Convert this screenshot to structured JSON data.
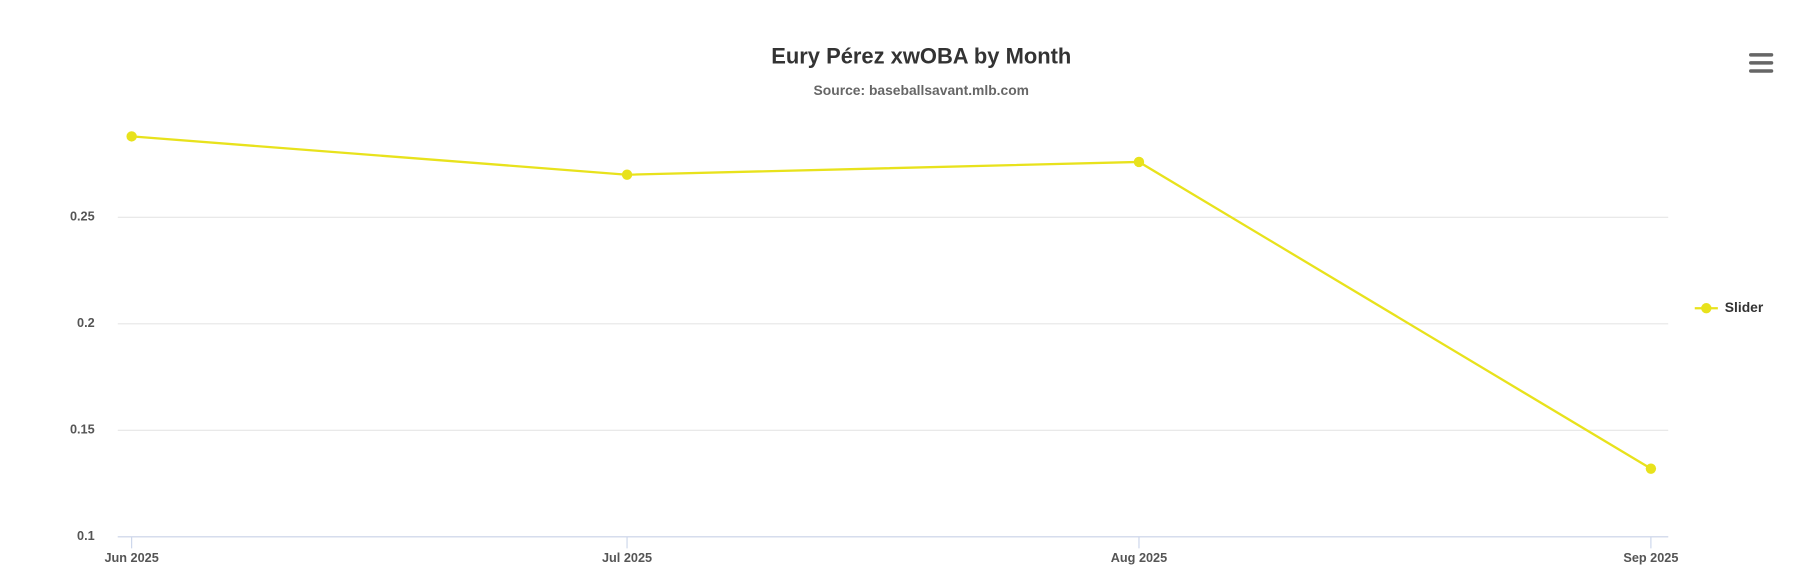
{
  "chart_data": {
    "type": "line",
    "title": "Eury Pérez xwOBA by Month",
    "subtitle": "Source: baseballsavant.mlb.com",
    "x": [
      "Jun 2025",
      "Jul 2025",
      "Aug 2025",
      "Sep 2025"
    ],
    "series": [
      {
        "name": "Slider",
        "color": "#e8e21c",
        "values": [
          0.288,
          0.27,
          0.276,
          0.132
        ]
      }
    ],
    "ylim": [
      0.1,
      0.3
    ],
    "yticks": [
      0.1,
      0.15,
      0.2,
      0.25
    ],
    "grid": true,
    "legend": "right"
  }
}
